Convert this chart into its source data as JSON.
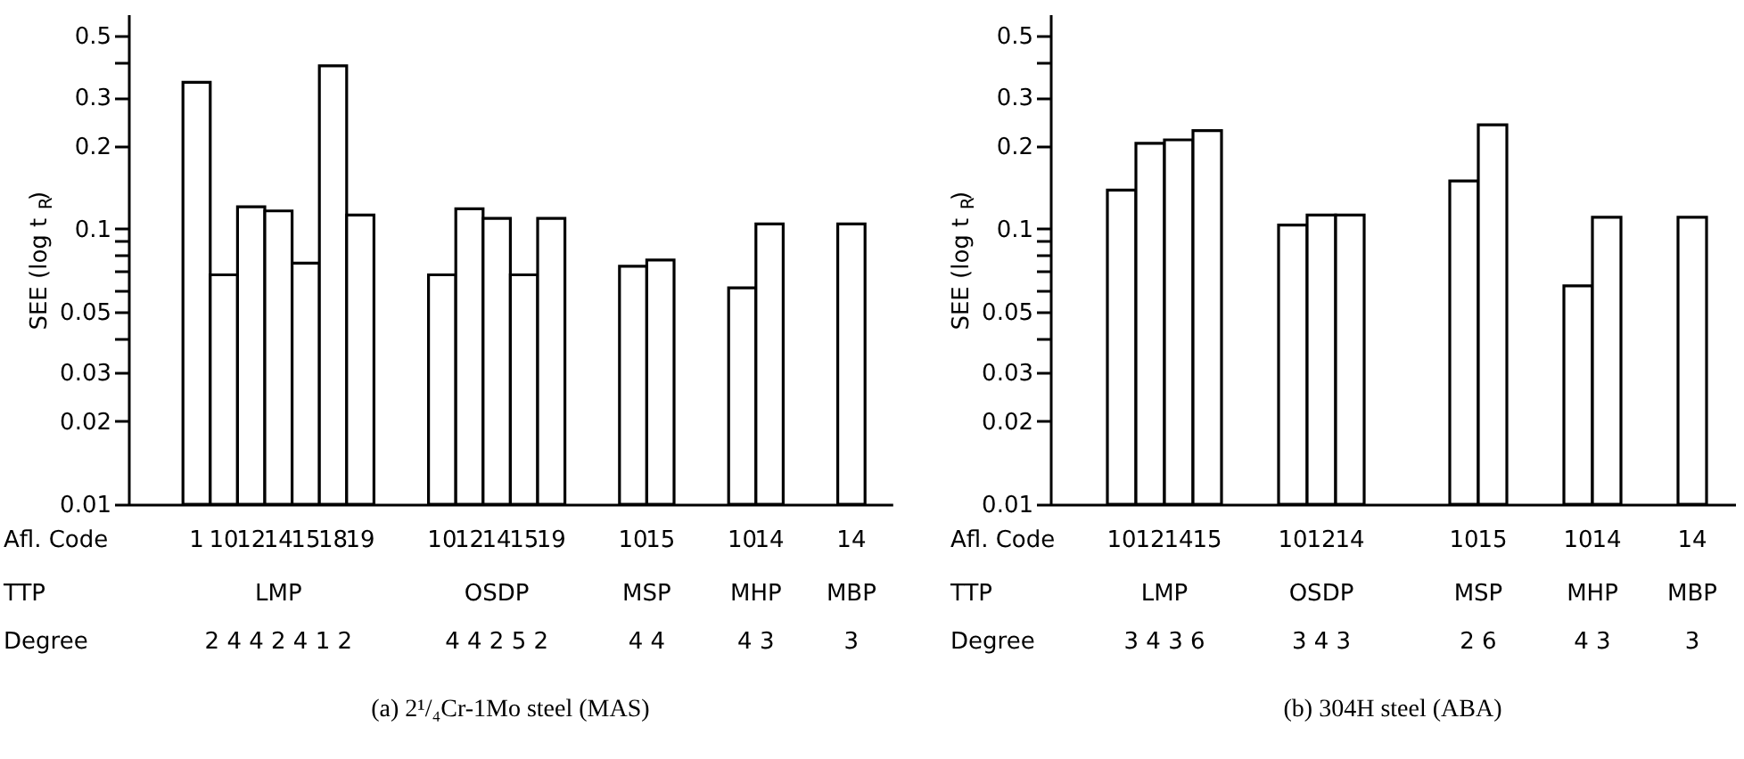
{
  "chart_data": [
    {
      "type": "bar",
      "title": "(a)  2¹/₄Cr-1Mo steel (MAS)",
      "ylabel": "SEE (log t$_{R}$)",
      "categories": [
        null,
        null,
        "1",
        "10",
        "12",
        "14",
        "15",
        "18",
        "19",
        null,
        null,
        "10",
        "12",
        "14",
        "15",
        "19",
        null,
        null,
        "10",
        "15",
        null,
        null,
        "10",
        "14",
        null,
        null,
        "14",
        null
      ],
      "values": [
        null,
        null,
        0.34,
        0.068,
        0.12,
        0.116,
        0.075,
        0.39,
        0.112,
        null,
        null,
        0.068,
        0.118,
        0.109,
        0.068,
        0.109,
        null,
        null,
        0.073,
        0.077,
        null,
        null,
        0.061,
        0.104,
        null,
        null,
        0.104,
        null
      ],
      "color": "#ffffff",
      "log": true,
      "ylim": [
        0.01,
        0.6
      ],
      "yticks": [
        0.01,
        0.02,
        0.03,
        {
          "value": 0.04,
          "label": null
        },
        0.05,
        {
          "value": 0.06,
          "label": null
        },
        {
          "value": 0.07,
          "label": null
        },
        {
          "value": 0.08,
          "label": null
        },
        {
          "value": 0.09,
          "label": null
        },
        0.1,
        0.2,
        0.3,
        {
          "value": 0.4,
          "label": null
        },
        0.5
      ],
      "annotations": [
        "Afl. Code",
        "TTP",
        "Degree",
        "LMP",
        "OSDP",
        "MSP",
        "MHP",
        "MBP",
        "2 4 4 2 4 1 2",
        "4 4 2 5 2",
        "4 4",
        "4 3",
        "3"
      ]
    },
    {
      "type": "bar",
      "title": "(b)  304H steel (ABA)",
      "ylabel": "SEE (log t$_{R}$)",
      "categories": [
        null,
        null,
        "10",
        "12",
        "14",
        "15",
        null,
        null,
        "10",
        "12",
        "14",
        null,
        null,
        null,
        "10",
        "15",
        null,
        null,
        "10",
        "14",
        null,
        null,
        "14",
        null
      ],
      "values": [
        null,
        null,
        0.138,
        0.204,
        0.21,
        0.227,
        null,
        null,
        0.103,
        0.112,
        0.112,
        null,
        null,
        null,
        0.149,
        0.238,
        null,
        null,
        0.062,
        0.11,
        null,
        null,
        0.11,
        null
      ],
      "color": "#ffffff",
      "log": true,
      "ylim": [
        0.01,
        0.6
      ],
      "yticks": [
        0.01,
        0.02,
        0.03,
        {
          "value": 0.04,
          "label": null
        },
        0.05,
        {
          "value": 0.06,
          "label": null
        },
        {
          "value": 0.07,
          "label": null
        },
        {
          "value": 0.08,
          "label": null
        },
        {
          "value": 0.09,
          "label": null
        },
        0.1,
        0.2,
        0.3,
        {
          "value": 0.4,
          "label": null
        },
        0.5
      ],
      "annotations": [
        "Afl. Code",
        "TTP",
        "Degree",
        "LMP",
        "OSDP",
        "MSP",
        "MHP",
        "MBP",
        "3 4 3 6",
        "3 4 3",
        "2 6",
        "4 3",
        "3"
      ]
    }
  ]
}
